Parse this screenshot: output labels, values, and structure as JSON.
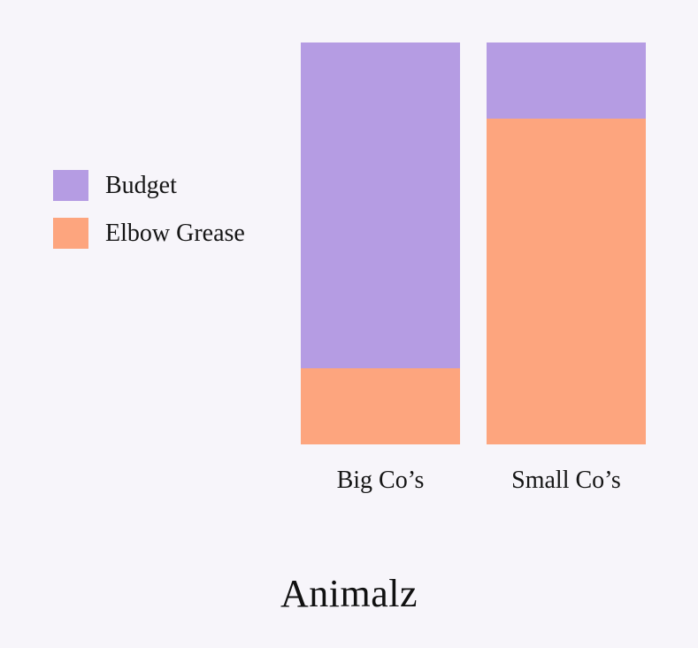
{
  "background": "#f7f5fa",
  "text_color": "#151515",
  "chart_data": {
    "type": "bar",
    "subtype": "stacked",
    "title": "",
    "xlabel": "",
    "ylabel": "",
    "categories": [
      "Big Co’s",
      "Small Co’s"
    ],
    "series": [
      {
        "name": "Budget",
        "color": "#b59ce3",
        "values": [
          81,
          19
        ]
      },
      {
        "name": "Elbow Grease",
        "color": "#fda57e",
        "values": [
          19,
          81
        ]
      }
    ],
    "unit": "percent",
    "ylim": [
      0,
      100
    ],
    "grid": false,
    "axes_visible": false,
    "legend_position": "center-left",
    "stack_order_top_to_bottom": [
      "Budget",
      "Elbow Grease"
    ]
  },
  "footer": {
    "brand": "Animalz"
  }
}
